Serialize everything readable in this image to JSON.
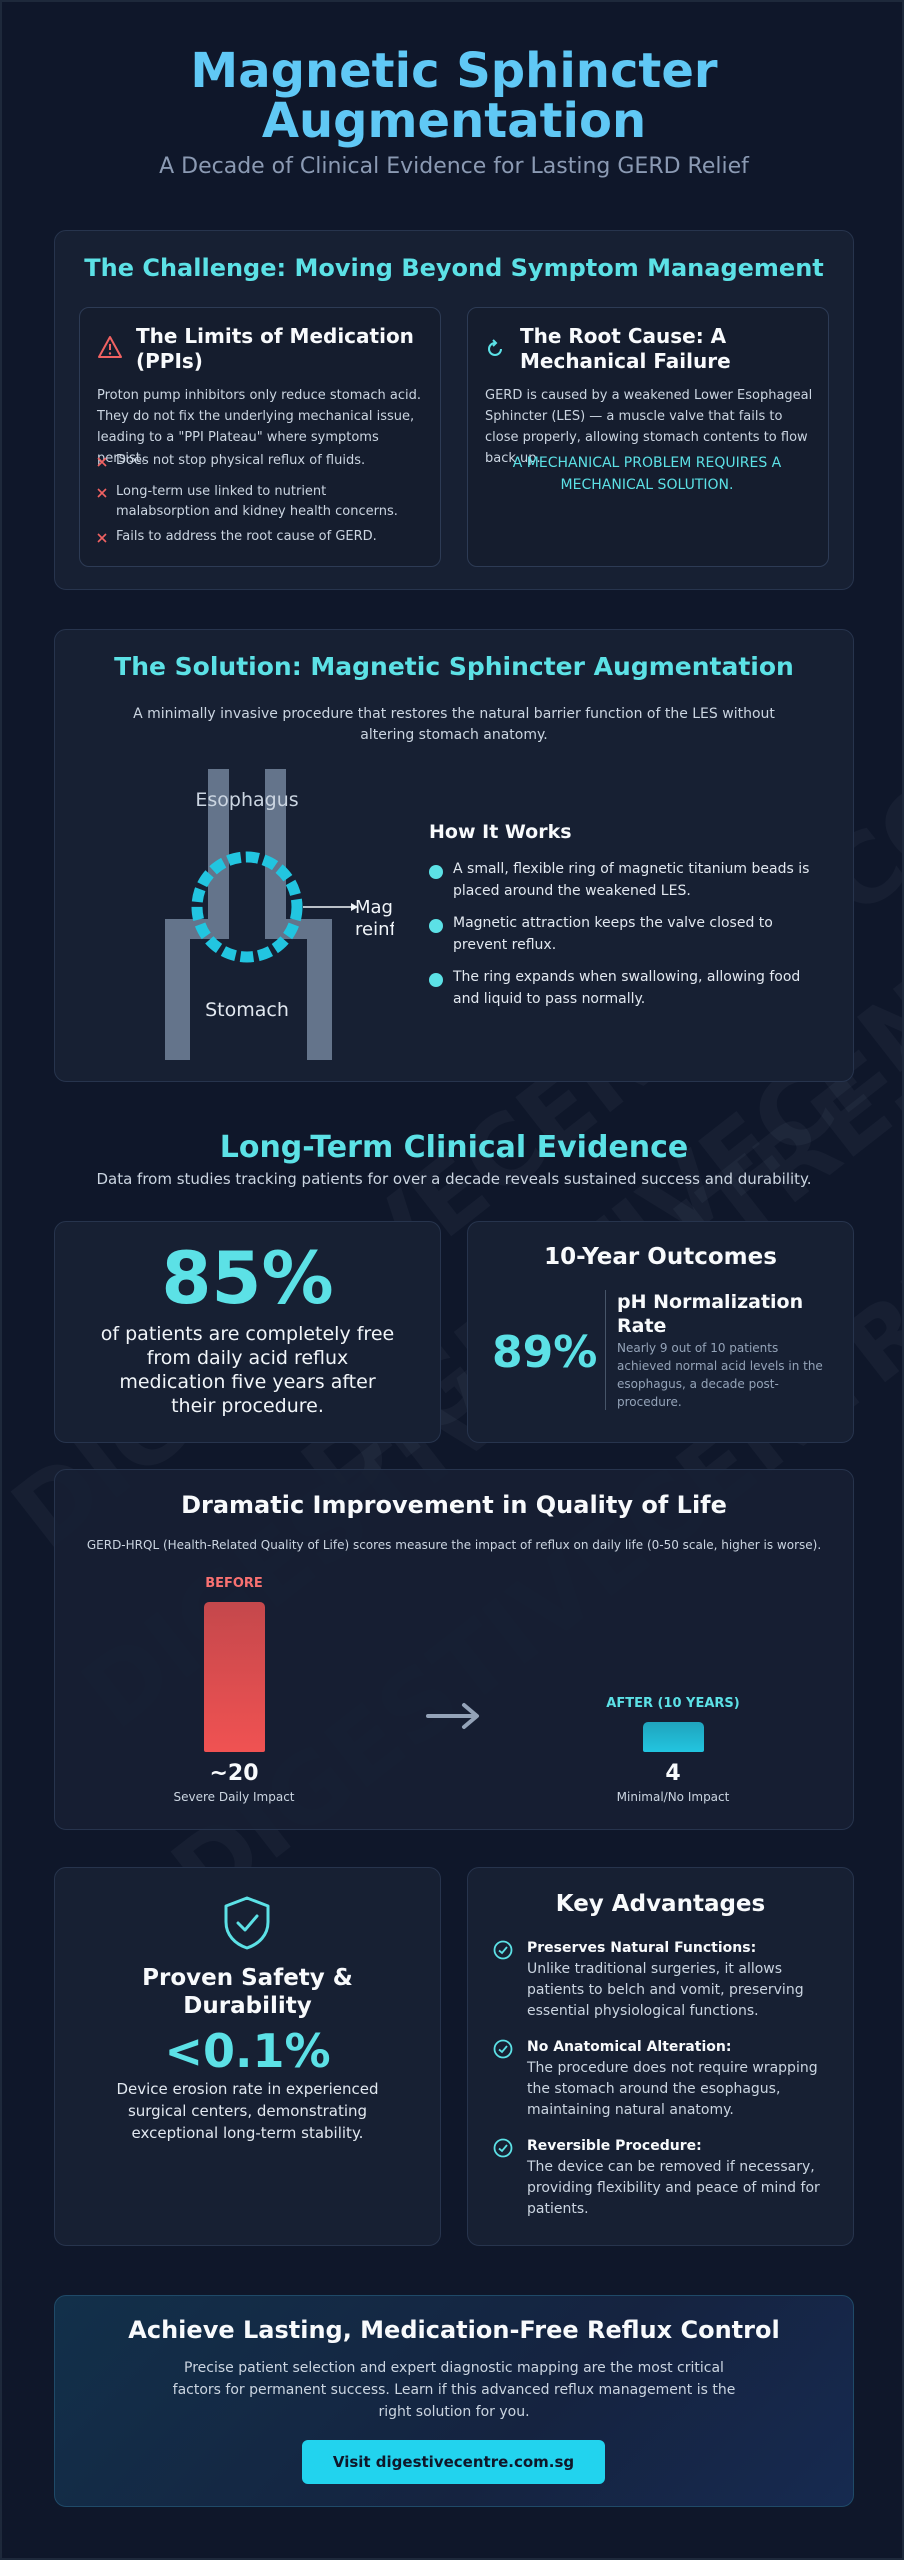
{
  "header": {
    "title": "Magnetic Sphincter Augmentation",
    "subtitle": "A Decade of Clinical Evidence for Lasting GERD Relief"
  },
  "watermark": "DIGESTIVECENTRE.COM.SG",
  "challenge": {
    "heading": "The Challenge: Moving Beyond Symptom Management",
    "medication": {
      "title": "The Limits of Medication (PPIs)",
      "text": "Proton pump inhibitors only reduce stomach acid. They do not fix the underlying mechanical issue, leading to a \"PPI Plateau\" where symptoms persist.",
      "points": [
        "Does not stop physical reflux of fluids.",
        "Long-term use linked to nutrient malabsorption and kidney health concerns.",
        "Fails to address the root cause of GERD."
      ]
    },
    "root_cause": {
      "title": "The Root Cause: A Mechanical Failure",
      "text": "GERD is caused by a weakened Lower Esophageal Sphincter (LES) — a muscle valve that fails to close properly, allowing stomach contents to flow back up.",
      "callout": "A MECHANICAL PROBLEM REQUIRES A MECHANICAL SOLUTION."
    }
  },
  "solution": {
    "heading": "The Solution: Magnetic Sphincter Augmentation",
    "text": "A minimally invasive procedure that restores the natural barrier function of the LES without altering stomach anatomy.",
    "diagram": {
      "top_label": "Esophagus",
      "bottom_label": "Stomach",
      "pointer_label": [
        "Magnetic",
        "reinforcement"
      ]
    },
    "how_title": "How It Works",
    "steps": [
      "A small, flexible ring of magnetic titanium beads is placed around the weakened LES.",
      "Magnetic attraction keeps the valve closed to prevent reflux.",
      "The ring expands when swallowing, allowing food and liquid to pass normally."
    ]
  },
  "evidence": {
    "heading": "Long-Term Clinical Evidence",
    "subtitle": "Data from studies tracking patients for over a decade reveals sustained success and durability.",
    "stat": {
      "value": "85%",
      "text": "of patients are completely free from daily acid reflux medication five years after their procedure."
    },
    "outcomes": {
      "title": "10-Year Outcomes",
      "value": "89%",
      "label": "pH Normalization Rate",
      "text": "Nearly 9 out of 10 patients achieved normal acid levels in the esophagus, a decade post-procedure."
    }
  },
  "quality": {
    "heading": "Dramatic Improvement in Quality of Life",
    "text": "GERD-HRQL (Health-Related Quality of Life) scores measure the impact of reflux on daily life (0-50 scale, higher is worse).",
    "chart": {
      "type": "bar",
      "categories": [
        "BEFORE",
        "AFTER (10 YEARS)"
      ],
      "values": [
        20,
        4
      ],
      "value_labels": [
        "~20",
        "4"
      ],
      "captions": [
        "Severe Daily Impact",
        "Minimal/No Impact"
      ],
      "colors": [
        "#f05252",
        "#22c5e0"
      ],
      "ylim": [
        0,
        50
      ]
    }
  },
  "safety": {
    "title": "Proven Safety & Durability",
    "value": "<0.1%",
    "text": "Device erosion rate in experienced surgical centers, demonstrating exceptional long-term stability."
  },
  "advantages": {
    "title": "Key Advantages",
    "items": [
      {
        "title": "Preserves Natural Functions:",
        "text": "Unlike traditional surgeries, it allows patients to belch and vomit, preserving essential physiological functions."
      },
      {
        "title": "No Anatomical Alteration:",
        "text": "The procedure does not require wrapping the stomach around the esophagus, maintaining natural anatomy."
      },
      {
        "title": "Reversible Procedure:",
        "text": "The device can be removed if necessary, providing flexibility and peace of mind for patients."
      }
    ]
  },
  "cta": {
    "heading": "Achieve Lasting, Medication-Free Reflux Control",
    "text": "Precise patient selection and expert diagnostic mapping are the most critical factors for permanent success. Learn if this advanced reflux management is the right solution for you.",
    "button": "Visit digestivecentre.com.sg"
  }
}
